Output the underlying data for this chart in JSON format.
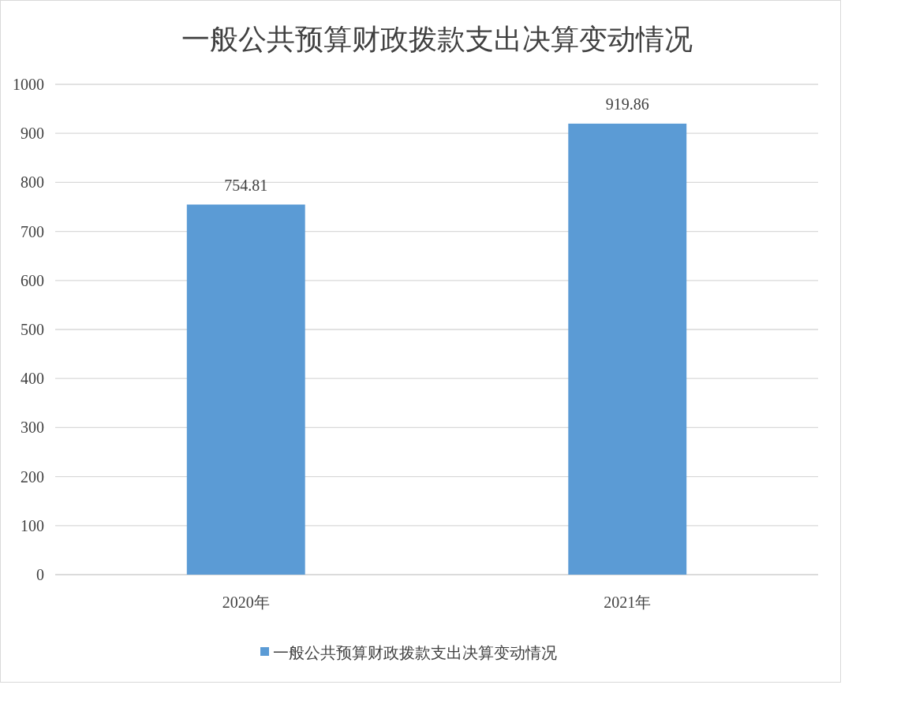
{
  "chart_data": {
    "type": "bar",
    "title": "一般公共预算财政拨款支出决算变动情况",
    "categories": [
      "2020年",
      "2021年"
    ],
    "series": [
      {
        "name": "一般公共预算财政拨款支出决算变动情况",
        "color": "#5b9bd5",
        "values": [
          754.81,
          919.86
        ]
      }
    ],
    "ylim": [
      0,
      1000
    ],
    "yticks": [
      0,
      100,
      200,
      300,
      400,
      500,
      600,
      700,
      800,
      900,
      1000
    ],
    "grid": "y",
    "legend": "bottom",
    "data_labels": true
  }
}
